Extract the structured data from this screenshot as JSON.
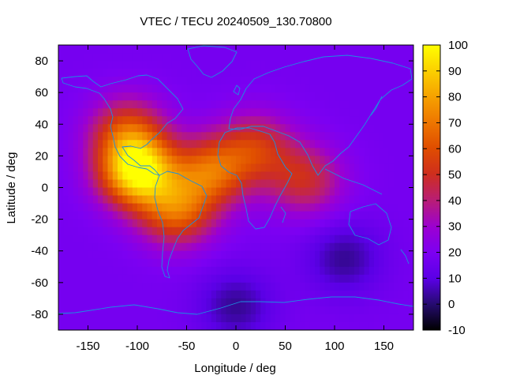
{
  "chart_data": {
    "type": "heatmap",
    "title": "VTEC / TECU 20240509_130.70800",
    "xlabel": "Longitude / deg",
    "ylabel": "Latitude / deg",
    "xlim": [
      -180,
      180
    ],
    "ylim": [
      -90,
      90
    ],
    "xticks": [
      -150,
      -100,
      -50,
      0,
      50,
      100,
      150
    ],
    "yticks": [
      -80,
      -60,
      -40,
      -20,
      0,
      20,
      40,
      60,
      80
    ],
    "colorbar": {
      "min": -10,
      "max": 100,
      "ticks": [
        -10,
        0,
        10,
        20,
        30,
        40,
        50,
        60,
        70,
        80,
        90,
        100
      ]
    },
    "background_value": 18,
    "features": [
      {
        "region": "equatorial anomaly crest, Central America",
        "lon": -100,
        "lat": 10,
        "value": 96
      },
      {
        "region": "equatorial anomaly, South America",
        "lon": -60,
        "lat": -15,
        "value": 62
      },
      {
        "region": "equatorial anomaly, tropical Atlantic",
        "lon": -25,
        "lat": 10,
        "value": 62
      },
      {
        "region": "enhancement, North America",
        "lon": -110,
        "lat": 35,
        "value": 55
      },
      {
        "region": "enhancement, North Africa",
        "lon": 20,
        "lat": 25,
        "value": 50
      },
      {
        "region": "enhancement, Indian Ocean",
        "lon": 70,
        "lat": 5,
        "value": 48
      },
      {
        "region": "depletion, Southern Ocean",
        "lon": 110,
        "lat": -45,
        "value": 3
      },
      {
        "region": "depletion, Antarctica",
        "lon": 0,
        "lat": -75,
        "value": 3
      }
    ]
  }
}
